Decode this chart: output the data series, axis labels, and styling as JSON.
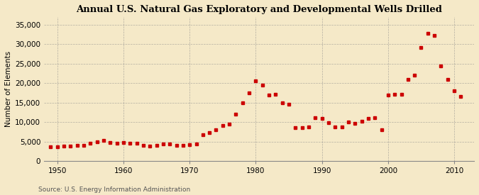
{
  "title": "Annual U.S. Natural Gas Exploratory and Developmental Wells Drilled",
  "ylabel": "Number of Elements",
  "source": "Source: U.S. Energy Information Administration",
  "background_color": "#f5e9c8",
  "plot_bg_color": "#f5e9c8",
  "marker_color": "#cc0000",
  "grid_color": "#888888",
  "xlim": [
    1948,
    2013
  ],
  "ylim": [
    0,
    37000
  ],
  "yticks": [
    0,
    5000,
    10000,
    15000,
    20000,
    25000,
    30000,
    35000
  ],
  "xticks": [
    1950,
    1960,
    1970,
    1980,
    1990,
    2000,
    2010
  ],
  "years": [
    1949,
    1950,
    1951,
    1952,
    1953,
    1954,
    1955,
    1956,
    1957,
    1958,
    1959,
    1960,
    1961,
    1962,
    1963,
    1964,
    1965,
    1966,
    1967,
    1968,
    1969,
    1970,
    1971,
    1972,
    1973,
    1974,
    1975,
    1976,
    1977,
    1978,
    1979,
    1980,
    1981,
    1982,
    1983,
    1984,
    1985,
    1986,
    1987,
    1988,
    1989,
    1990,
    1991,
    1992,
    1993,
    1994,
    1995,
    1996,
    1997,
    1998,
    1999,
    2000,
    2001,
    2002,
    2003,
    2004,
    2005,
    2006,
    2007,
    2008,
    2009,
    2010,
    2011
  ],
  "values": [
    3600,
    3700,
    3800,
    3800,
    4100,
    4000,
    4600,
    5000,
    5200,
    4700,
    4500,
    4800,
    4600,
    4600,
    4000,
    3800,
    4100,
    4400,
    4400,
    4100,
    4100,
    4200,
    4400,
    6800,
    7200,
    8000,
    9200,
    9500,
    12000,
    15000,
    17500,
    20500,
    19500,
    17000,
    17200,
    15000,
    14500,
    8500,
    8500,
    8700,
    11200,
    11000,
    9900,
    8800,
    8700,
    10000,
    9700,
    10200,
    11000,
    11100,
    8000,
    16900,
    17100,
    17200,
    21000,
    22100,
    29100,
    32800,
    32300,
    24400,
    21000,
    18100,
    16500
  ]
}
